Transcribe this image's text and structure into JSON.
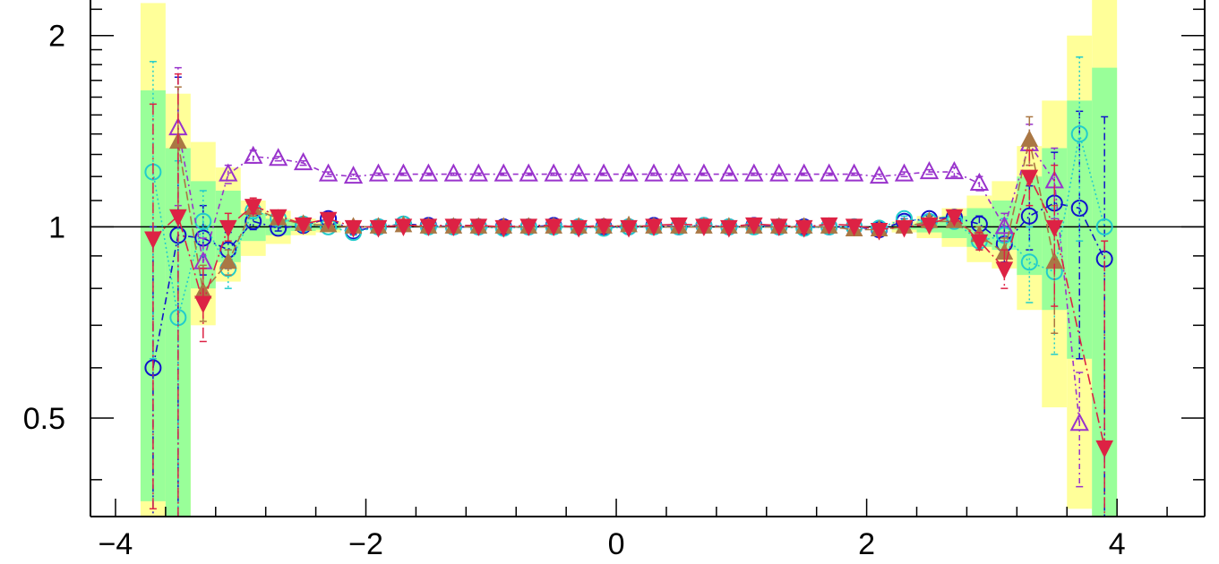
{
  "chart_data": {
    "type": "scatter",
    "title": "",
    "xlabel": "",
    "ylabel": "",
    "xlim": [
      -4.2,
      4.7
    ],
    "ylim": [
      0.35,
      2.35
    ],
    "y_scale": "log",
    "x_ticks": [
      -4,
      -2,
      0,
      2,
      4
    ],
    "x_tick_labels": [
      "−4",
      "−2",
      "0",
      "2",
      "4"
    ],
    "y_ticks": [
      0.5,
      1,
      2
    ],
    "y_tick_labels": [
      "0.5",
      "1",
      "2"
    ],
    "reference_line": 1,
    "grid": false,
    "legend": "none",
    "bands": {
      "x_edges": [
        -3.8,
        -3.6,
        -3.4,
        -3.2,
        -3.0,
        -2.8,
        -2.6,
        -2.4,
        -2.2,
        2.2,
        2.4,
        2.6,
        2.8,
        3.0,
        3.2,
        3.4,
        3.6,
        3.8,
        4.0
      ],
      "outer": {
        "color": "#ffff99",
        "lo": [
          0.35,
          0.35,
          0.7,
          0.82,
          0.9,
          0.94,
          0.97,
          0.98,
          1.0,
          0.98,
          0.96,
          0.93,
          0.88,
          0.86,
          0.74,
          0.52,
          0.36,
          0.35
        ],
        "hi": [
          2.25,
          1.62,
          1.36,
          1.24,
          1.1,
          1.06,
          1.03,
          1.02,
          1.0,
          1.02,
          1.04,
          1.07,
          1.12,
          1.18,
          1.34,
          1.58,
          2.0,
          2.35
        ]
      },
      "inner": {
        "color": "#99ff99",
        "lo": [
          0.37,
          0.35,
          0.8,
          0.88,
          0.95,
          0.97,
          0.985,
          0.99,
          1.0,
          0.99,
          0.98,
          0.96,
          0.93,
          0.92,
          0.84,
          0.74,
          0.62,
          0.35
        ],
        "hi": [
          1.64,
          1.33,
          1.18,
          1.14,
          1.05,
          1.03,
          1.015,
          1.01,
          1.0,
          1.01,
          1.02,
          1.04,
          1.07,
          1.1,
          1.2,
          1.33,
          1.58,
          1.78
        ]
      }
    },
    "x": [
      -3.7,
      -3.5,
      -3.3,
      -3.1,
      -2.9,
      -2.7,
      -2.5,
      -2.3,
      -2.1,
      -1.9,
      -1.7,
      -1.5,
      -1.3,
      -1.1,
      -0.9,
      -0.7,
      -0.5,
      -0.3,
      -0.1,
      0.1,
      0.3,
      0.5,
      0.7,
      0.9,
      1.1,
      1.3,
      1.5,
      1.7,
      1.9,
      2.1,
      2.3,
      2.5,
      2.7,
      2.9,
      3.1,
      3.3,
      3.5,
      3.7,
      3.9
    ],
    "series": [
      {
        "color": "#1111cc",
        "marker": "circle-open",
        "dash": "8,4,2,4",
        "values": [
          0.6,
          0.97,
          0.96,
          0.92,
          1.02,
          0.995,
          1.005,
          1.03,
          0.985,
          1.0,
          1.01,
          1.005,
          1.0,
          1.0,
          1.0,
          1.0,
          1.005,
          1.0,
          1.0,
          1.0,
          1.005,
          1.0,
          1.005,
          1.0,
          1.005,
          1.0,
          1.0,
          1.0,
          1.0,
          0.99,
          1.02,
          1.03,
          1.035,
          1.01,
          0.94,
          1.04,
          1.09,
          1.07,
          0.89
        ],
        "err": [
          0.4,
          0.75,
          0.12,
          0.06,
          0.03,
          0.01,
          0.01,
          0.01,
          0.01,
          0.005,
          0.005,
          0.005,
          0.005,
          0.005,
          0.005,
          0.005,
          0.005,
          0.005,
          0.005,
          0.005,
          0.005,
          0.005,
          0.005,
          0.005,
          0.005,
          0.005,
          0.005,
          0.005,
          0.005,
          0.01,
          0.01,
          0.01,
          0.02,
          0.03,
          0.06,
          0.12,
          0.22,
          0.45,
          0.6
        ]
      },
      {
        "color": "#22cccc",
        "marker": "circle-open",
        "dash": "2,3",
        "values": [
          1.22,
          0.72,
          1.02,
          0.86,
          1.06,
          1.03,
          1.01,
          1.0,
          0.98,
          1.0,
          1.01,
          1.0,
          1.0,
          1.0,
          0.995,
          1.0,
          1.0,
          1.0,
          0.995,
          1.0,
          1.0,
          1.0,
          1.005,
          1.0,
          1.0,
          1.0,
          0.995,
          1.0,
          1.0,
          0.995,
          1.03,
          1.02,
          1.02,
          0.95,
          0.97,
          0.88,
          0.85,
          1.4,
          1.0
        ],
        "err": [
          0.6,
          0.55,
          0.12,
          0.06,
          0.03,
          0.01,
          0.01,
          0.01,
          0.01,
          0.005,
          0.005,
          0.005,
          0.005,
          0.005,
          0.005,
          0.005,
          0.005,
          0.005,
          0.005,
          0.005,
          0.005,
          0.005,
          0.005,
          0.005,
          0.005,
          0.005,
          0.005,
          0.005,
          0.005,
          0.01,
          0.01,
          0.01,
          0.02,
          0.03,
          0.06,
          0.12,
          0.22,
          0.45,
          0.0
        ]
      },
      {
        "color": "#9933cc",
        "marker": "triangle-up-open",
        "dash": "2,4,6,4",
        "values": [
          null,
          1.43,
          0.88,
          1.21,
          1.29,
          1.28,
          1.26,
          1.21,
          1.2,
          1.21,
          1.21,
          1.21,
          1.21,
          1.21,
          1.21,
          1.21,
          1.21,
          1.21,
          1.21,
          1.21,
          1.21,
          1.21,
          1.21,
          1.21,
          1.21,
          1.21,
          1.21,
          1.21,
          1.21,
          1.2,
          1.21,
          1.22,
          1.22,
          1.17,
          1.0,
          1.35,
          1.18,
          0.49,
          null
        ],
        "err": [
          0,
          0.35,
          0.08,
          0.04,
          0.03,
          0.01,
          0.01,
          0.01,
          0.01,
          0.005,
          0.005,
          0.005,
          0.005,
          0.005,
          0.005,
          0.005,
          0.005,
          0.005,
          0.005,
          0.005,
          0.005,
          0.005,
          0.005,
          0.005,
          0.005,
          0.005,
          0.005,
          0.005,
          0.005,
          0.01,
          0.01,
          0.01,
          0.02,
          0.03,
          0.05,
          0.1,
          0.15,
          0.1,
          0
        ]
      },
      {
        "color": "#aa7744",
        "marker": "triangle-up-filled",
        "dash": "10,4",
        "values": [
          null,
          1.36,
          0.79,
          0.88,
          1.07,
          1.03,
          1.01,
          1.005,
          1.0,
          1.0,
          1.005,
          1.0,
          1.0,
          1.0,
          1.0,
          1.0,
          1.0,
          1.0,
          1.0,
          1.005,
          1.0,
          1.0,
          1.0,
          1.0,
          1.0,
          1.0,
          1.0,
          1.0,
          0.99,
          0.99,
          1.0,
          1.02,
          1.02,
          0.97,
          0.91,
          1.37,
          0.88,
          null,
          null
        ],
        "err": [
          0,
          0.3,
          0.08,
          0.04,
          0.03,
          0.01,
          0.01,
          0.01,
          0.01,
          0.005,
          0.005,
          0.005,
          0.005,
          0.005,
          0.005,
          0.005,
          0.005,
          0.005,
          0.005,
          0.005,
          0.005,
          0.005,
          0.005,
          0.005,
          0.005,
          0.005,
          0.005,
          0.005,
          0.005,
          0.01,
          0.01,
          0.01,
          0.02,
          0.03,
          0.05,
          0.12,
          0.2,
          0,
          0
        ]
      },
      {
        "color": "#dd2244",
        "marker": "triangle-down-filled",
        "dash": "12,4,2,4",
        "values": [
          0.96,
          1.04,
          0.76,
          1.0,
          1.08,
          1.04,
          1.01,
          1.03,
          1.0,
          1.0,
          1.005,
          1.005,
          1.005,
          1.005,
          1.0,
          1.005,
          1.005,
          1.0,
          1.005,
          1.0,
          1.005,
          1.01,
          1.005,
          1.0,
          1.01,
          1.005,
          1.0,
          1.01,
          1.005,
          0.99,
          1.0,
          1.01,
          1.04,
          0.95,
          0.86,
          1.2,
          1.0,
          null,
          0.45
        ],
        "err": [
          0.6,
          0.7,
          0.1,
          0.05,
          0.03,
          0.01,
          0.01,
          0.01,
          0.01,
          0.005,
          0.005,
          0.005,
          0.005,
          0.005,
          0.005,
          0.005,
          0.005,
          0.005,
          0.005,
          0.005,
          0.005,
          0.005,
          0.005,
          0.005,
          0.005,
          0.005,
          0.005,
          0.005,
          0.005,
          0.01,
          0.01,
          0.01,
          0.02,
          0.03,
          0.06,
          0.12,
          0.25,
          0,
          0.5
        ]
      }
    ]
  }
}
